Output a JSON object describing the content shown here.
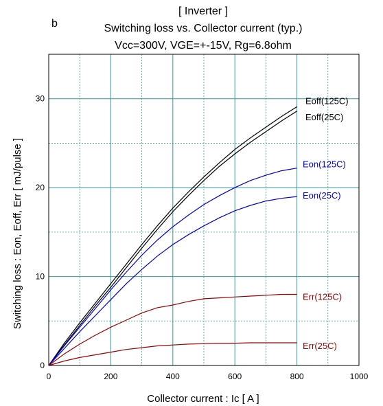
{
  "chart_data": {
    "type": "line",
    "panel_letter": "b",
    "title": "[ Inverter ]",
    "subtitle": "Switching loss  vs.  Collector current  (typ.)",
    "conditions": "Vcc=300V, VGE=+-15V, Rg=6.8ohm",
    "xlabel": "Collector current  :  Ic  [ A ]",
    "ylabel": "Switching loss  :  Eon, Eoff, Err  [ mJ/pulse ]",
    "xlim": [
      0,
      1000
    ],
    "ylim": [
      0,
      35
    ],
    "xticks": [
      "0",
      "200",
      "400",
      "600",
      "800",
      "1000"
    ],
    "yticks": [
      "0",
      "10",
      "20",
      "30"
    ],
    "grid": true,
    "x": [
      0,
      50,
      100,
      150,
      200,
      250,
      300,
      350,
      400,
      450,
      500,
      550,
      600,
      650,
      700,
      750,
      800
    ],
    "series": [
      {
        "name": "Eoff(125C)",
        "color": "#000000",
        "values": [
          0,
          2.5,
          4.8,
          7.0,
          9.2,
          11.4,
          13.6,
          15.7,
          17.7,
          19.5,
          21.2,
          22.8,
          24.3,
          25.6,
          26.8,
          28.0,
          29.1
        ]
      },
      {
        "name": "Eoff(25C)",
        "color": "#000000",
        "values": [
          0,
          2.3,
          4.5,
          6.7,
          8.8,
          11.0,
          13.2,
          15.3,
          17.3,
          19.1,
          20.8,
          22.4,
          23.8,
          25.1,
          26.3,
          27.5,
          28.6
        ]
      },
      {
        "name": "Eon(125C)",
        "color": "#0000cc",
        "values": [
          0,
          2.2,
          4.3,
          6.4,
          8.5,
          10.5,
          12.4,
          14.1,
          15.6,
          16.9,
          18.1,
          19.1,
          20.0,
          20.8,
          21.4,
          21.9,
          22.2
        ]
      },
      {
        "name": "Eon(25C)",
        "color": "#0000cc",
        "values": [
          0,
          1.9,
          3.8,
          5.6,
          7.4,
          9.2,
          10.8,
          12.3,
          13.6,
          14.7,
          15.7,
          16.6,
          17.4,
          18.0,
          18.5,
          18.8,
          19.0
        ]
      },
      {
        "name": "Err(125C)",
        "color": "#990000",
        "values": [
          0,
          1.3,
          2.4,
          3.4,
          4.3,
          5.1,
          5.9,
          6.5,
          6.8,
          7.2,
          7.5,
          7.6,
          7.7,
          7.8,
          7.9,
          8.0,
          8.0
        ]
      },
      {
        "name": "Err(25C)",
        "color": "#990000",
        "values": [
          0,
          0.5,
          0.9,
          1.2,
          1.5,
          1.8,
          2.0,
          2.2,
          2.3,
          2.4,
          2.45,
          2.5,
          2.5,
          2.55,
          2.55,
          2.55,
          2.55
        ]
      }
    ]
  },
  "colors": {
    "major_grid": "#339999",
    "minor_grid": "#339999",
    "axes": "#000000"
  }
}
